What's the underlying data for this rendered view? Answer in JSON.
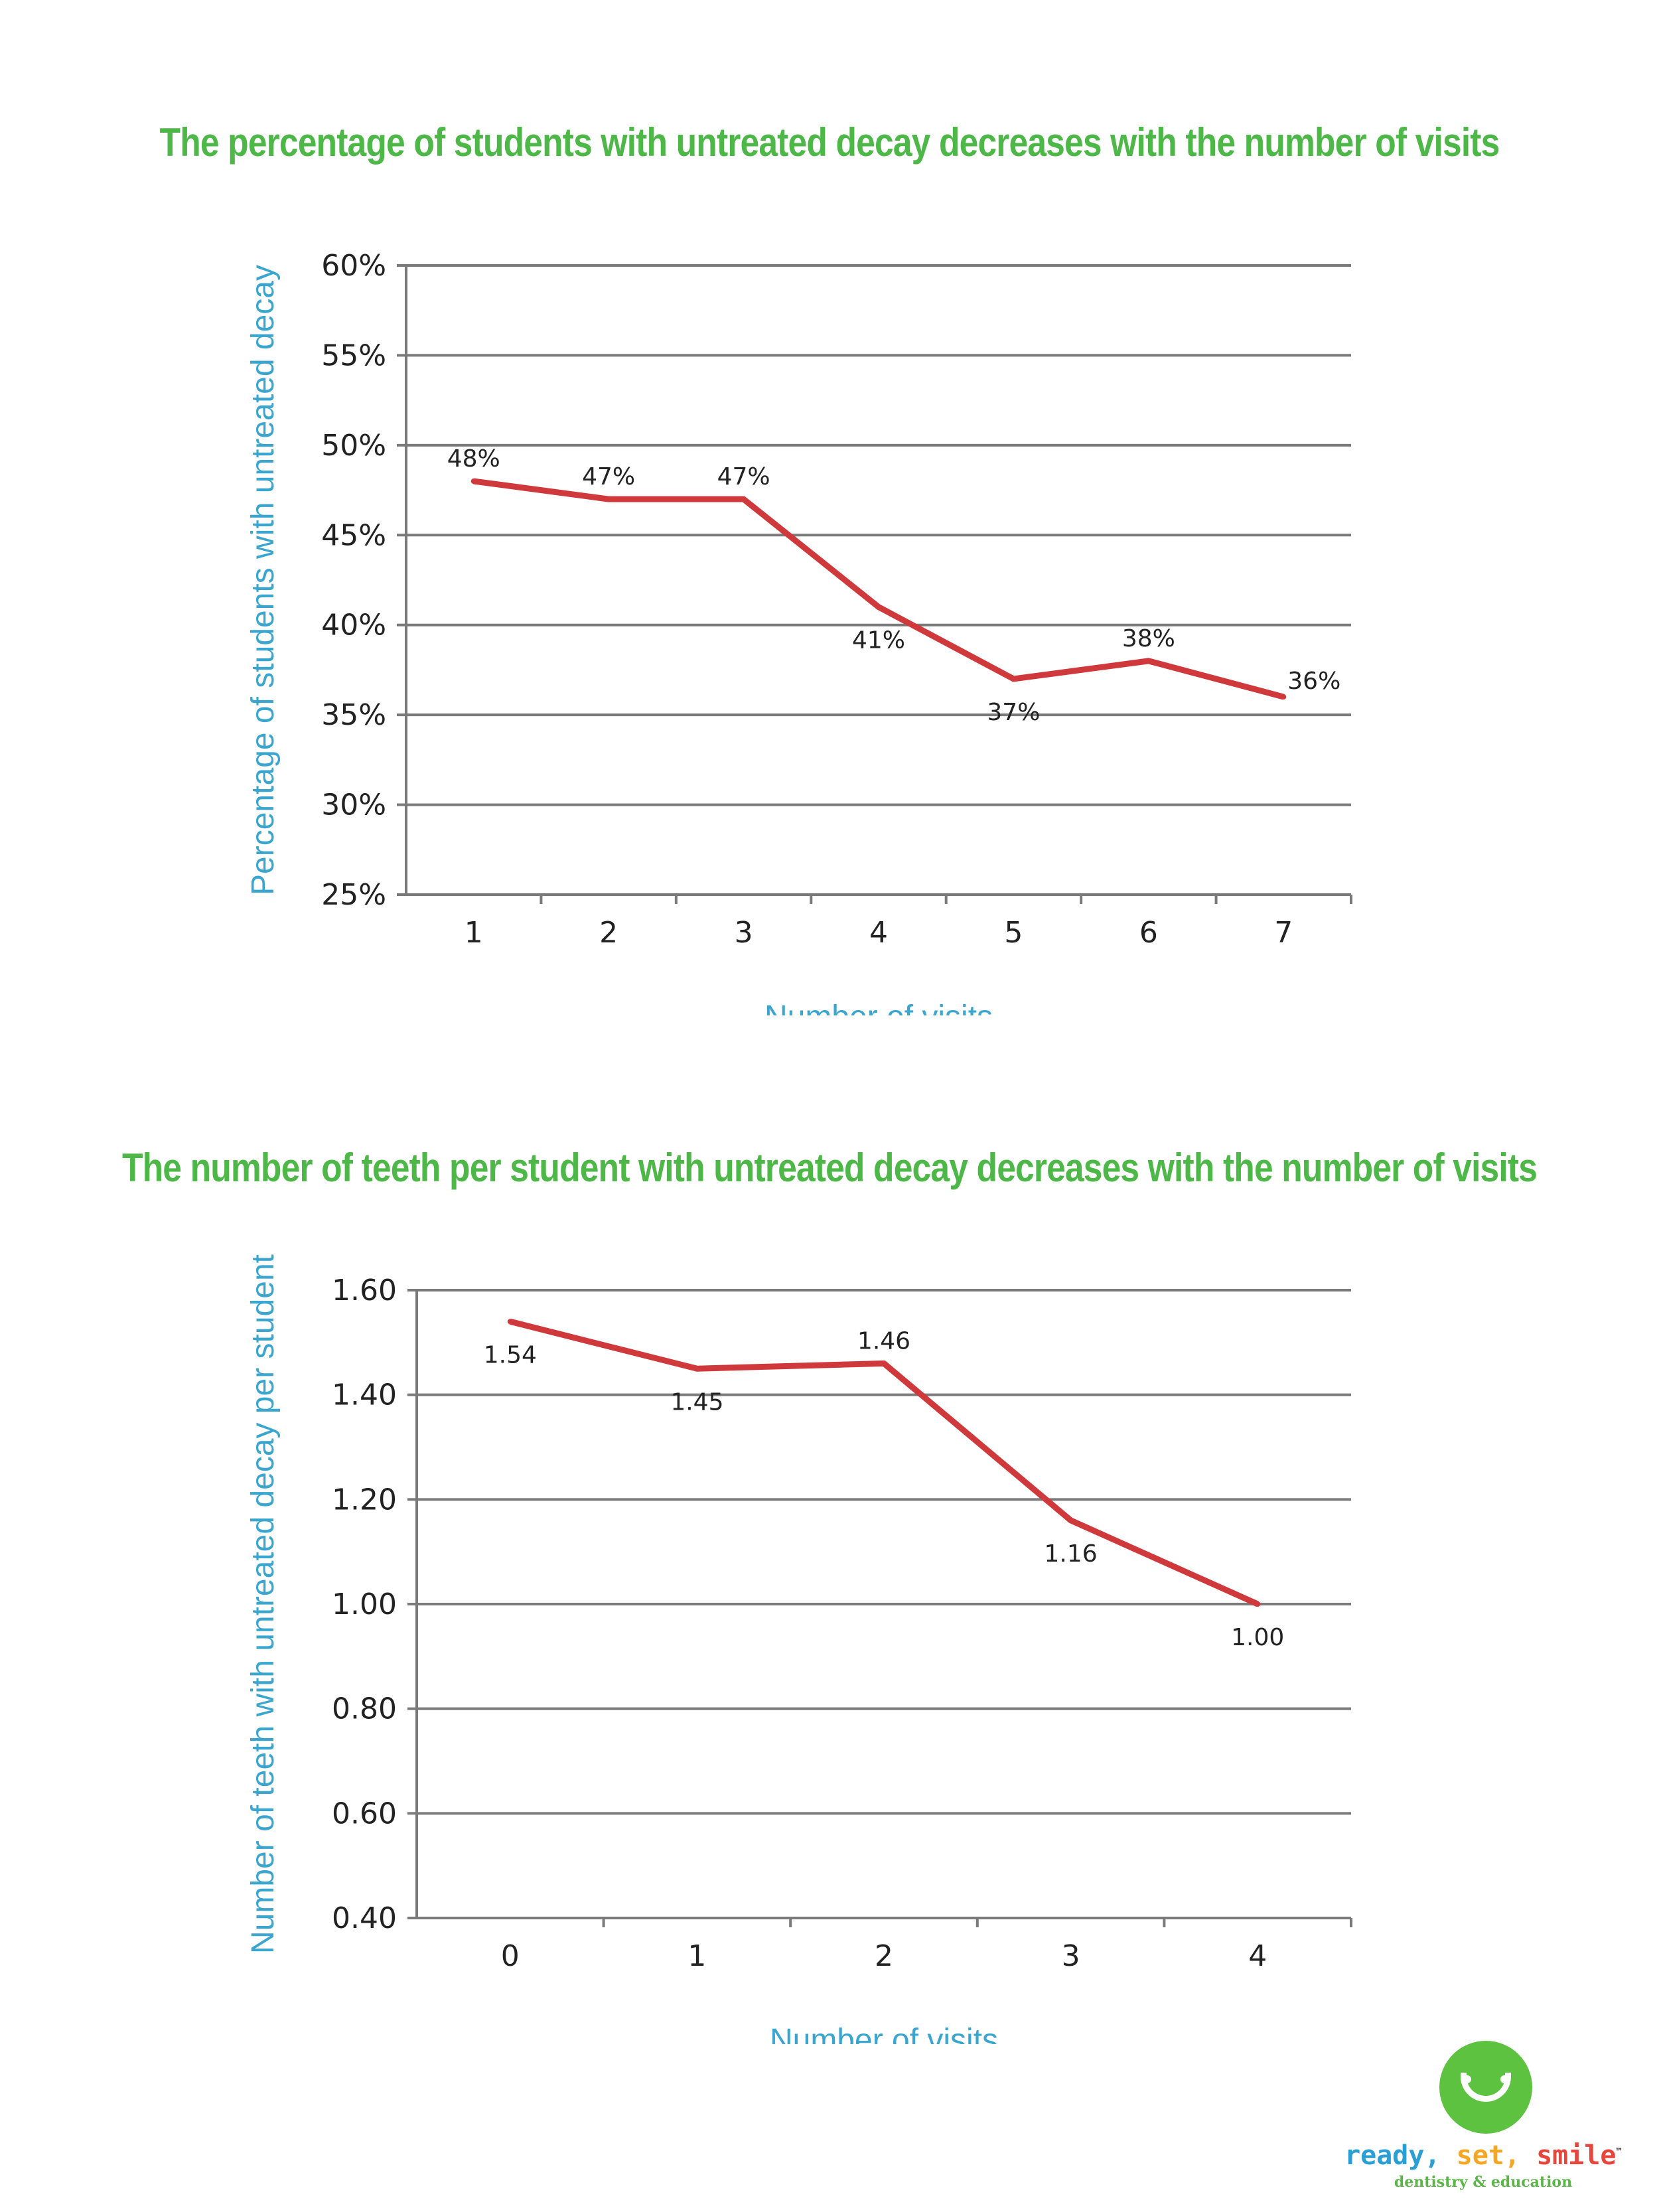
{
  "chart_data": [
    {
      "type": "line",
      "title": "The percentage of students with untreated decay decreases with the number of visits",
      "xlabel": "Number of visits",
      "ylabel": "Percentage of students with untreated decay",
      "categories": [
        "1",
        "2",
        "3",
        "4",
        "5",
        "6",
        "7"
      ],
      "values": [
        48,
        47,
        47,
        41,
        37,
        38,
        36
      ],
      "data_labels": [
        "48%",
        "47%",
        "47%",
        "41%",
        "37%",
        "38%",
        "36%"
      ],
      "label_side": [
        "above",
        "above",
        "above",
        "below",
        "below",
        "above",
        "right"
      ],
      "ylim": [
        25,
        60
      ],
      "yticks": [
        25,
        30,
        35,
        40,
        45,
        50,
        55,
        60
      ],
      "ytick_labels": [
        "25%",
        "30%",
        "35%",
        "40%",
        "45%",
        "50%",
        "55%",
        "60%"
      ],
      "grid": true,
      "line_color": "#d0393c"
    },
    {
      "type": "line",
      "title": "The number of teeth per student with untreated decay decreases with the number of visits",
      "xlabel": "Number of visits",
      "ylabel": "Number of teeth with untreated decay per student",
      "categories": [
        "0",
        "1",
        "2",
        "3",
        "4"
      ],
      "values": [
        1.54,
        1.45,
        1.46,
        1.16,
        1.0
      ],
      "data_labels": [
        "1.54",
        "1.45",
        "1.46",
        "1.16",
        "1.00"
      ],
      "label_side": [
        "below",
        "below",
        "above",
        "below",
        "below"
      ],
      "ylim": [
        0.4,
        1.6
      ],
      "yticks": [
        0.4,
        0.6,
        0.8,
        1.0,
        1.2,
        1.4,
        1.6
      ],
      "ytick_labels": [
        "0.40",
        "0.60",
        "0.80",
        "1.00",
        "1.20",
        "1.40",
        "1.60"
      ],
      "grid": true,
      "line_color": "#d0393c"
    }
  ],
  "logo": {
    "word1": "ready,",
    "word2": "set,",
    "word3": "smile",
    "tm": "™",
    "tagline": "dentistry & education"
  }
}
